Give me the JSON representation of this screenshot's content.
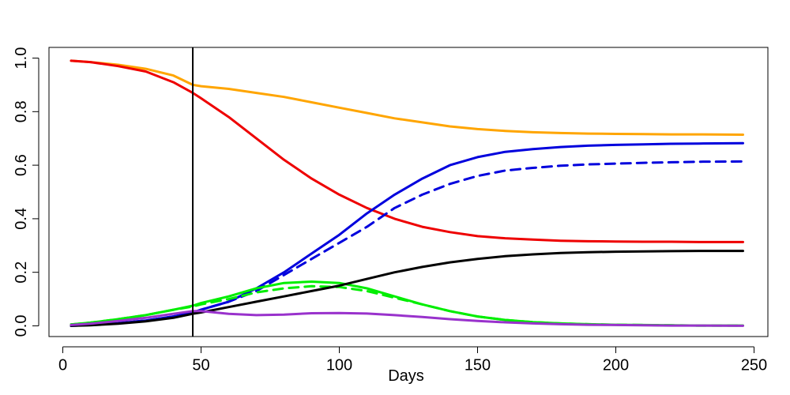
{
  "chart_data": {
    "type": "line",
    "title": "",
    "xlabel": "Days",
    "ylabel": "",
    "xlim": [
      -5,
      255
    ],
    "ylim": [
      -0.04,
      1.04
    ],
    "x_ticks": [
      0,
      50,
      100,
      150,
      200,
      250
    ],
    "x_tick_labels": [
      "0",
      "50",
      "100",
      "150",
      "200",
      "250"
    ],
    "y_ticks": [
      0.0,
      0.2,
      0.4,
      0.6,
      0.8,
      1.0
    ],
    "y_tick_labels": [
      "0.0",
      "0.2",
      "0.4",
      "0.6",
      "0.8",
      "1.0"
    ],
    "grid": false,
    "legend": "none",
    "vline": {
      "x": 47,
      "color": "#000000"
    },
    "series": [
      {
        "color": "#ffa500",
        "dash": "solid",
        "x": [
          3,
          10,
          20,
          30,
          40,
          47,
          50,
          60,
          70,
          80,
          90,
          100,
          110,
          120,
          130,
          140,
          150,
          160,
          170,
          180,
          190,
          200,
          210,
          220,
          230,
          246
        ],
        "y": [
          0.99,
          0.985,
          0.975,
          0.96,
          0.935,
          0.9,
          0.895,
          0.885,
          0.87,
          0.855,
          0.835,
          0.815,
          0.795,
          0.775,
          0.76,
          0.745,
          0.735,
          0.728,
          0.723,
          0.72,
          0.718,
          0.717,
          0.716,
          0.715,
          0.715,
          0.714
        ]
      },
      {
        "color": "#ee0000",
        "dash": "solid",
        "x": [
          3,
          10,
          20,
          30,
          40,
          47,
          50,
          60,
          70,
          80,
          90,
          100,
          110,
          120,
          130,
          140,
          150,
          160,
          170,
          180,
          190,
          200,
          210,
          220,
          230,
          246
        ],
        "y": [
          0.99,
          0.985,
          0.97,
          0.95,
          0.91,
          0.87,
          0.85,
          0.78,
          0.7,
          0.62,
          0.55,
          0.49,
          0.44,
          0.4,
          0.37,
          0.35,
          0.335,
          0.327,
          0.322,
          0.318,
          0.316,
          0.315,
          0.314,
          0.314,
          0.313,
          0.313
        ]
      },
      {
        "color": "#0000dd",
        "dash": "solid",
        "x": [
          3,
          10,
          20,
          30,
          40,
          47,
          50,
          60,
          70,
          80,
          90,
          100,
          110,
          120,
          130,
          140,
          150,
          160,
          170,
          180,
          190,
          200,
          210,
          220,
          230,
          246
        ],
        "y": [
          0.0,
          0.003,
          0.01,
          0.02,
          0.035,
          0.05,
          0.06,
          0.09,
          0.14,
          0.2,
          0.27,
          0.34,
          0.42,
          0.49,
          0.55,
          0.6,
          0.63,
          0.65,
          0.66,
          0.668,
          0.673,
          0.676,
          0.678,
          0.68,
          0.681,
          0.682
        ]
      },
      {
        "color": "#0000dd",
        "dash": "dashed",
        "x": [
          3,
          10,
          20,
          30,
          40,
          47,
          50,
          60,
          70,
          80,
          90,
          100,
          110,
          120,
          130,
          140,
          150,
          160,
          170,
          180,
          190,
          200,
          210,
          220,
          230,
          246
        ],
        "y": [
          0.0,
          0.003,
          0.01,
          0.02,
          0.035,
          0.05,
          0.06,
          0.09,
          0.13,
          0.19,
          0.25,
          0.31,
          0.37,
          0.44,
          0.49,
          0.53,
          0.56,
          0.58,
          0.59,
          0.598,
          0.603,
          0.606,
          0.609,
          0.611,
          0.613,
          0.614
        ]
      },
      {
        "color": "#00ee00",
        "dash": "solid",
        "x": [
          3,
          10,
          20,
          30,
          40,
          47,
          50,
          60,
          70,
          80,
          90,
          100,
          110,
          120,
          130,
          140,
          150,
          160,
          170,
          180,
          190,
          200,
          210,
          220,
          230,
          246
        ],
        "y": [
          0.005,
          0.012,
          0.025,
          0.04,
          0.06,
          0.075,
          0.085,
          0.11,
          0.14,
          0.16,
          0.165,
          0.16,
          0.14,
          0.11,
          0.08,
          0.055,
          0.035,
          0.022,
          0.014,
          0.009,
          0.006,
          0.004,
          0.003,
          0.002,
          0.001,
          0.001
        ]
      },
      {
        "color": "#00ee00",
        "dash": "dashed",
        "x": [
          3,
          10,
          20,
          30,
          40,
          47,
          50,
          60,
          70,
          80,
          90,
          100,
          110,
          120,
          130,
          140,
          150,
          160,
          170,
          180,
          190,
          200,
          210,
          220,
          230,
          246
        ],
        "y": [
          0.005,
          0.012,
          0.025,
          0.04,
          0.06,
          0.072,
          0.08,
          0.1,
          0.125,
          0.14,
          0.148,
          0.145,
          0.13,
          0.105,
          0.08,
          0.055,
          0.035,
          0.022,
          0.014,
          0.009,
          0.006,
          0.004,
          0.003,
          0.002,
          0.001,
          0.001
        ]
      },
      {
        "color": "#000000",
        "dash": "solid",
        "x": [
          3,
          10,
          20,
          30,
          40,
          47,
          50,
          60,
          70,
          80,
          90,
          100,
          110,
          120,
          130,
          140,
          150,
          160,
          170,
          180,
          190,
          200,
          210,
          220,
          230,
          246
        ],
        "y": [
          0.0,
          0.002,
          0.008,
          0.017,
          0.03,
          0.045,
          0.05,
          0.07,
          0.09,
          0.11,
          0.13,
          0.15,
          0.175,
          0.2,
          0.22,
          0.237,
          0.25,
          0.26,
          0.267,
          0.272,
          0.275,
          0.277,
          0.278,
          0.279,
          0.28,
          0.28
        ]
      },
      {
        "color": "#9932cc",
        "dash": "solid",
        "x": [
          3,
          10,
          20,
          30,
          40,
          47,
          50,
          60,
          70,
          80,
          90,
          100,
          110,
          120,
          130,
          140,
          150,
          160,
          170,
          180,
          190,
          200,
          210,
          220,
          230,
          246
        ],
        "y": [
          0.003,
          0.008,
          0.018,
          0.03,
          0.045,
          0.055,
          0.055,
          0.045,
          0.04,
          0.042,
          0.047,
          0.048,
          0.046,
          0.04,
          0.033,
          0.025,
          0.018,
          0.013,
          0.009,
          0.006,
          0.004,
          0.003,
          0.002,
          0.001,
          0.001,
          0.0
        ]
      }
    ]
  }
}
